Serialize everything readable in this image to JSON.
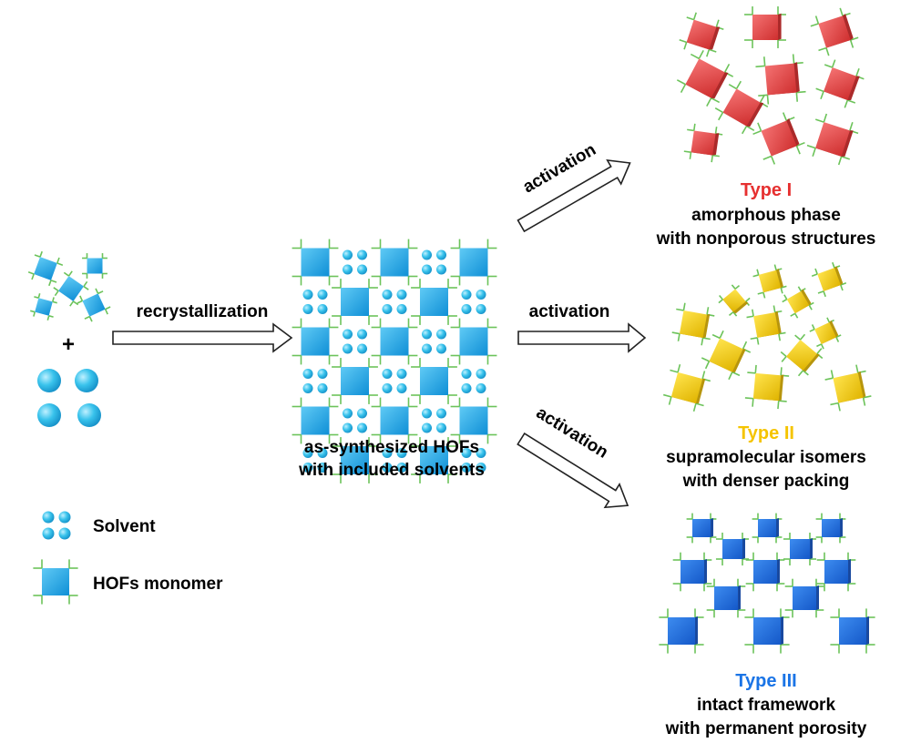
{
  "texts": {
    "recrystallization": "recrystallization",
    "plus": "+",
    "activation": "activation",
    "hofs_line1": "as-synthesized HOFs",
    "hofs_line2": "with included solvents",
    "legend_solvent": "Solvent",
    "legend_monomer": "HOFs monomer"
  },
  "types": [
    {
      "title": "Type I",
      "line1": "amorphous phase",
      "line2": "with nonporous structures",
      "color": "#e63030"
    },
    {
      "title": "Type II",
      "line1": "supramolecular isomers",
      "line2": "with denser packing",
      "color": "#f5c400"
    },
    {
      "title": "Type III",
      "line1": "intact framework",
      "line2": "with permanent porosity",
      "color": "#1a74e6"
    }
  ],
  "colors": {
    "monomer_cyan": "#1ba6e8",
    "solvent_cyan": "#35c6ea",
    "linker_green": "#6cc35a",
    "red_block": "#e84545",
    "yellow_block": "#f2cc12",
    "blue_block": "#1a6fe0"
  }
}
